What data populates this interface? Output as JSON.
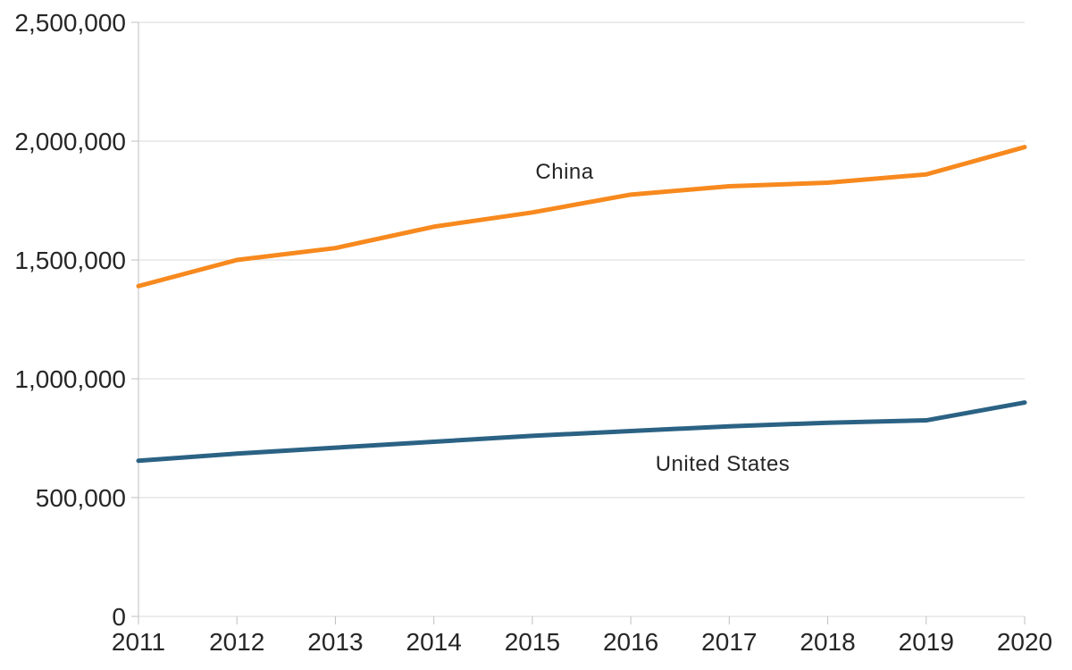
{
  "chart_data": {
    "type": "line",
    "x": [
      2011,
      2012,
      2013,
      2014,
      2015,
      2016,
      2017,
      2018,
      2019,
      2020
    ],
    "x_tick_labels": [
      "2011",
      "2012",
      "2013",
      "2014",
      "2015",
      "2016",
      "2017",
      "2018",
      "2019",
      "2020"
    ],
    "y_tick_labels": [
      "0",
      "500,000",
      "1,000,000",
      "1,500,000",
      "2,000,000",
      "2,500,000"
    ],
    "ylim": [
      0,
      2500000
    ],
    "y_tick_step": 500000,
    "grid": true,
    "legend_position": "inline-labels",
    "title": "",
    "xlabel": "",
    "ylabel": "",
    "series": [
      {
        "name": "China",
        "color": "#F7891E",
        "values": [
          1390000,
          1500000,
          1550000,
          1640000,
          1700000,
          1775000,
          1810000,
          1825000,
          1860000,
          1975000
        ],
        "label_pos": {
          "x": 632,
          "y": 193
        }
      },
      {
        "name": "United States",
        "color": "#2B6284",
        "values": [
          655000,
          685000,
          710000,
          735000,
          760000,
          780000,
          800000,
          815000,
          825000,
          900000
        ],
        "label_pos": {
          "x": 809,
          "y": 520
        }
      }
    ]
  },
  "colors": {
    "background": "#FFFFFF",
    "gridline": "#D9D9D9",
    "axis": "#BFBFBF",
    "text": "#262626"
  }
}
